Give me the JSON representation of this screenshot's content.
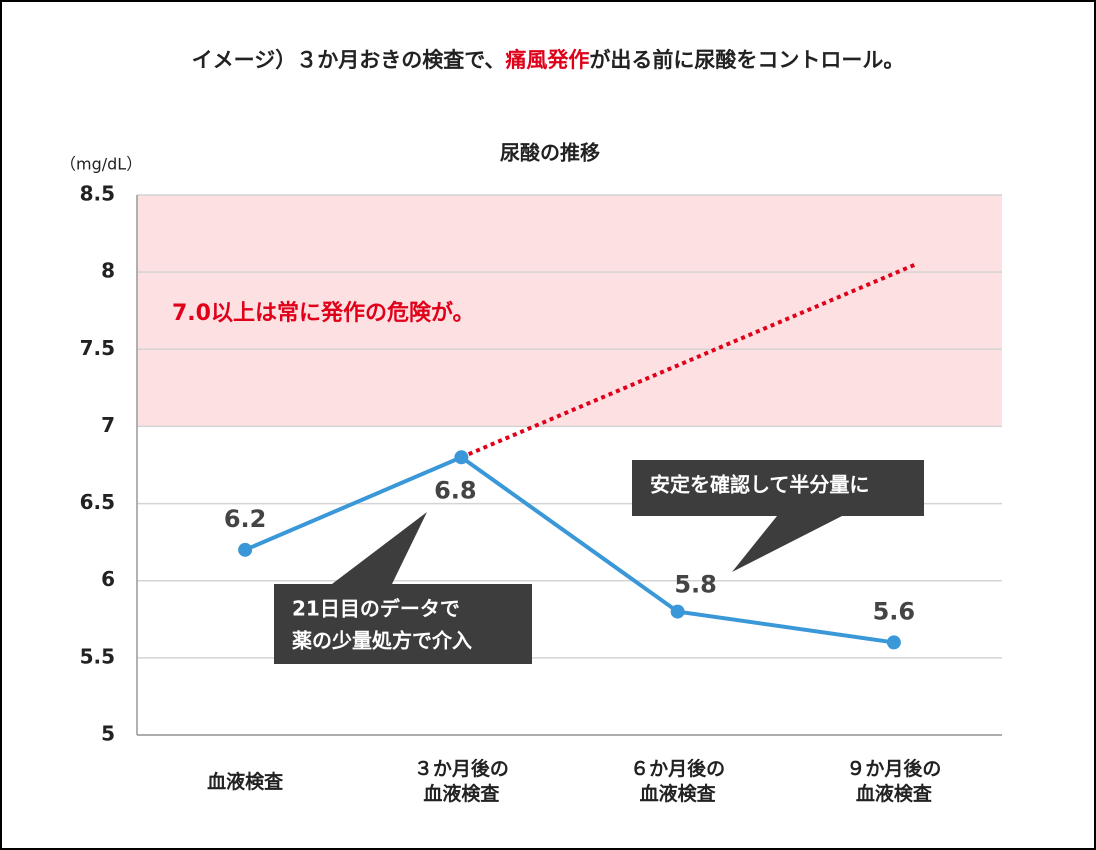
{
  "header": {
    "title": [
      "イメージ）３か月おきの検査で、",
      "痛風発作",
      "が出る前に尿酸をコントロール。"
    ]
  },
  "chart_data": {
    "type": "line",
    "title": "尿酸の推移",
    "y_label": "（mg/dL）",
    "categories": [
      "血液検査",
      "３か月後の血液検査",
      "６か月後の血液検査",
      "９か月後の血液検査"
    ],
    "series": [
      {
        "color": "#3a98d8",
        "values": [
          6.2,
          6.8,
          5.8,
          5.6
        ]
      }
    ],
    "projection": {
      "x": [
        1,
        3.1
      ],
      "values": [
        6.8,
        8.05
      ],
      "color": "#e0001a"
    },
    "band": {
      "from": 7,
      "to": 8.5,
      "color": "#fde0e2",
      "label": "7.0以上は常に発作の危険が。",
      "label_color": "#e0001a"
    },
    "callouts": [
      {
        "lines": [
          "21日目のデータで",
          "薬の少量処方で介入"
        ]
      },
      {
        "lines": [
          "安定を確認して半分量に"
        ]
      }
    ],
    "ylim": [
      5,
      8.5
    ],
    "yticks": [
      5,
      5.5,
      6,
      6.5,
      7,
      7.5,
      8,
      8.5
    ],
    "grid": true
  }
}
